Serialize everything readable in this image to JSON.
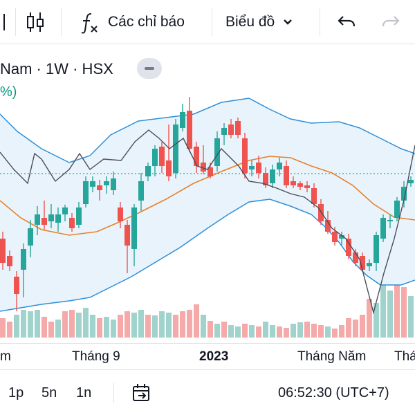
{
  "toolbar": {
    "indicators_label": "Các chỉ báo",
    "chart_type_label": "Biểu đồ"
  },
  "legend": {
    "symbol_partial": "Nam · 1W · HSX",
    "sub_partial": "%)"
  },
  "colors": {
    "up": "#26a69a",
    "down": "#ef5350",
    "bb_band": "#2f8fd8",
    "bb_fill": "#e8f3fb",
    "bb_basis": "#e8812a",
    "price_line": "#131722",
    "volume_up": "#9fd3cc",
    "volume_down": "#f5a9a9"
  },
  "xaxis": {
    "labels": [
      "m",
      "Tháng 9",
      "2023",
      "Tháng Năm",
      "Thá"
    ]
  },
  "bottombar": {
    "intervals": [
      "1p",
      "5n",
      "1n"
    ],
    "clock": "06:52:30 (UTC+7)"
  }
}
